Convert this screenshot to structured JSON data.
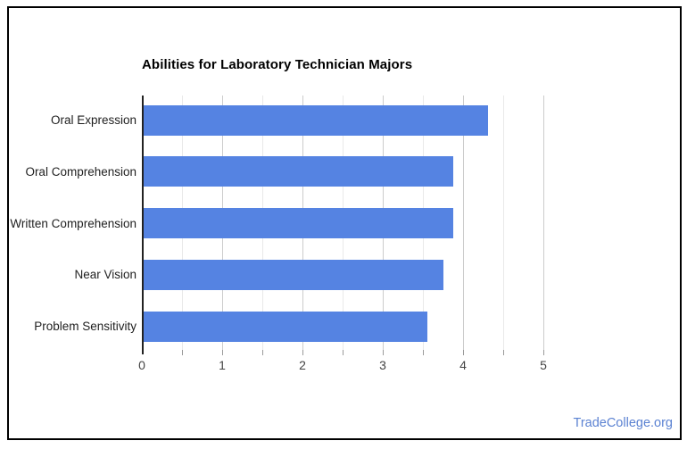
{
  "page": {
    "background": "#ffffff",
    "border_color": "#000000"
  },
  "chart_data": {
    "type": "bar",
    "orientation": "horizontal",
    "title": "Abilities for Laboratory Technician Majors",
    "categories": [
      "Oral Expression",
      "Oral Comprehension",
      "Written Comprehension",
      "Near Vision",
      "Problem Sensitivity"
    ],
    "values": [
      4.31,
      3.88,
      3.88,
      3.75,
      3.56
    ],
    "xlabel": "",
    "ylabel": "",
    "xlim": [
      0,
      5
    ],
    "x_major_ticks": [
      0,
      1,
      2,
      3,
      4,
      5
    ],
    "x_minor_step": 0.5,
    "grid": true,
    "legend": "none",
    "bar_color": "#5583e2",
    "axis_line_color": "#222222",
    "major_grid_color": "#cccccc",
    "minor_grid_color": "#e9e9e9",
    "tick_mark_color": "#9a9a9a",
    "tick_label_color": "#444444",
    "category_label_color": "#1f1f1f",
    "title_color": "#000000"
  },
  "footer": {
    "brand": "TradeCollege.org",
    "color": "#5b82d2"
  }
}
